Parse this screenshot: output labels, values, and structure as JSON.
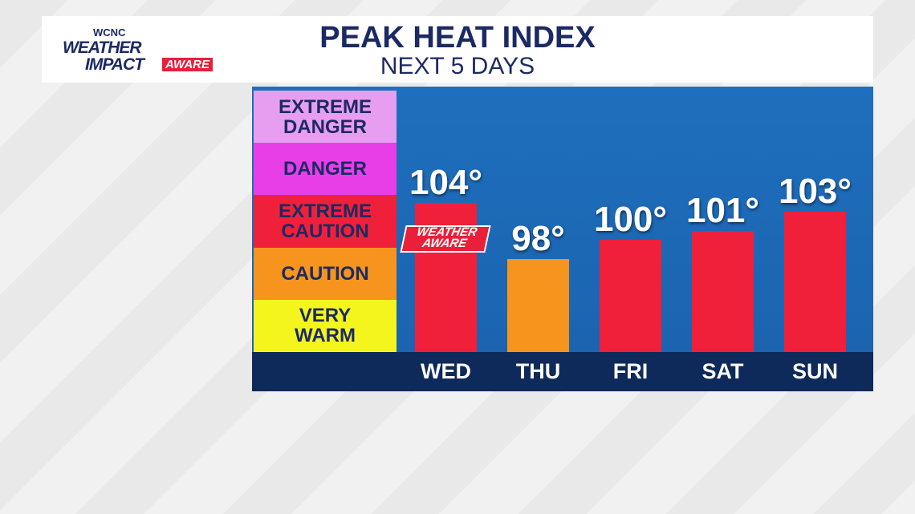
{
  "header": {
    "logo": {
      "station": "WCNC",
      "line1": "WEATHER",
      "line2": "IMPACT",
      "line3": "AWARE"
    }
  },
  "chart_data": {
    "type": "bar",
    "title": "PEAK HEAT INDEX",
    "subtitle": "NEXT 5 DAYS",
    "categories": [
      "WED",
      "THU",
      "FRI",
      "SAT",
      "SUN"
    ],
    "values": [
      104,
      98,
      100,
      101,
      103
    ],
    "value_labels": [
      "104°",
      "98°",
      "100°",
      "101°",
      "103°"
    ],
    "colors": [
      "#f0203a",
      "#f7941d",
      "#f0203a",
      "#f0203a",
      "#f0203a"
    ],
    "ylim": [
      88,
      116
    ],
    "annotation": "WEATHER AWARE",
    "legend": [
      {
        "label": "EXTREME DANGER",
        "color": "#e79ef0"
      },
      {
        "label": "DANGER",
        "color": "#e83ee8"
      },
      {
        "label": "EXTREME CAUTION",
        "color": "#f0203a"
      },
      {
        "label": "CAUTION",
        "color": "#f7941d"
      },
      {
        "label": "VERY WARM",
        "color": "#f5f51e"
      }
    ]
  }
}
